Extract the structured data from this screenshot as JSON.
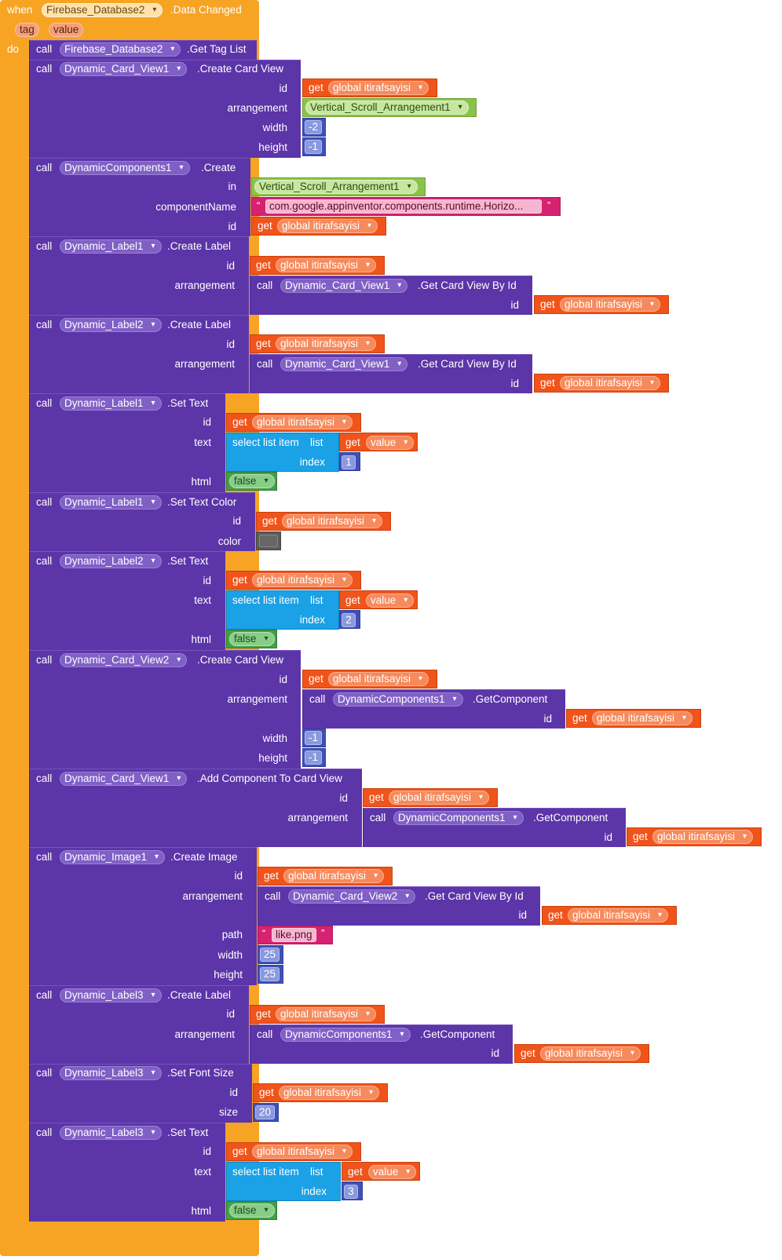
{
  "event": {
    "when": "when",
    "component": "Firebase_Database2",
    "event": ".Data Changed",
    "params": [
      "tag",
      "value"
    ],
    "do": "do"
  },
  "kw": {
    "call": "call",
    "get": "get",
    "in": "in",
    "id": "id",
    "arrangement": "arrangement",
    "width": "width",
    "height": "height",
    "componentName": "componentName",
    "text": "text",
    "html": "html",
    "color": "color",
    "index": "index",
    "path": "path",
    "size": "size",
    "list": "list",
    "select": "select list item",
    "false": "false"
  },
  "b1": {
    "comp": "Firebase_Database2",
    "method": ".Get Tag List"
  },
  "b2": {
    "comp": "Dynamic_Card_View1",
    "method": ".Create Card View",
    "id": "global itirafsayisi",
    "arrangement": "Vertical_Scroll_Arrangement1",
    "width": "-2",
    "height": "-1"
  },
  "b3": {
    "comp": "DynamicComponents1",
    "method": ".Create",
    "in": "Vertical_Scroll_Arrangement1",
    "componentName": "com.google.appinventor.components.runtime.Horizo...",
    "id": "global itirafsayisi"
  },
  "b4": {
    "comp": "Dynamic_Label1",
    "method": ".Create Label",
    "id": "global itirafsayisi",
    "arrComp": "Dynamic_Card_View1",
    "arrMethod": ".Get Card View By Id",
    "arrId": "global itirafsayisi"
  },
  "b5": {
    "comp": "Dynamic_Label2",
    "method": ".Create Label",
    "id": "global itirafsayisi",
    "arrComp": "Dynamic_Card_View1",
    "arrMethod": ".Get Card View By Id",
    "arrId": "global itirafsayisi"
  },
  "b6": {
    "comp": "Dynamic_Label1",
    "method": ".Set Text",
    "id": "global itirafsayisi",
    "listVar": "value",
    "index": "1",
    "html": "false"
  },
  "b7": {
    "comp": "Dynamic_Label1",
    "method": ".Set Text Color",
    "id": "global itirafsayisi",
    "color": "#666666"
  },
  "b8": {
    "comp": "Dynamic_Label2",
    "method": ".Set Text",
    "id": "global itirafsayisi",
    "listVar": "value",
    "index": "2",
    "html": "false"
  },
  "b9": {
    "comp": "Dynamic_Card_View2",
    "method": ".Create Card View",
    "id": "global itirafsayisi",
    "arrComp": "DynamicComponents1",
    "arrMethod": ".GetComponent",
    "arrId": "global itirafsayisi",
    "width": "-1",
    "height": "-1"
  },
  "b10": {
    "comp": "Dynamic_Card_View1",
    "method": ".Add Component To Card View",
    "id": "global itirafsayisi",
    "arrComp": "DynamicComponents1",
    "arrMethod": ".GetComponent",
    "arrId": "global itirafsayisi"
  },
  "b11": {
    "comp": "Dynamic_Image1",
    "method": ".Create Image",
    "id": "global itirafsayisi",
    "arrComp": "Dynamic_Card_View2",
    "arrMethod": ".Get Card View By Id",
    "arrId": "global itirafsayisi",
    "path": "like.png",
    "width": "25",
    "height": "25"
  },
  "b12": {
    "comp": "Dynamic_Label3",
    "method": ".Create Label",
    "id": "global itirafsayisi",
    "arrComp": "DynamicComponents1",
    "arrMethod": ".GetComponent",
    "arrId": "global itirafsayisi"
  },
  "b13": {
    "comp": "Dynamic_Label3",
    "method": ".Set Font Size",
    "id": "global itirafsayisi",
    "size": "20"
  },
  "b14": {
    "comp": "Dynamic_Label3",
    "method": ".Set Text",
    "id": "global itirafsayisi",
    "listVar": "value",
    "index": "3",
    "html": "false"
  },
  "colors": {
    "event": "#f7a425",
    "call": "#5c35a8",
    "get": "#f0541a",
    "arrangement": "#8bc34a",
    "text": "#d62270",
    "number": "#3f51b5",
    "list": "#1aa1e6",
    "logic": "#43a047"
  }
}
